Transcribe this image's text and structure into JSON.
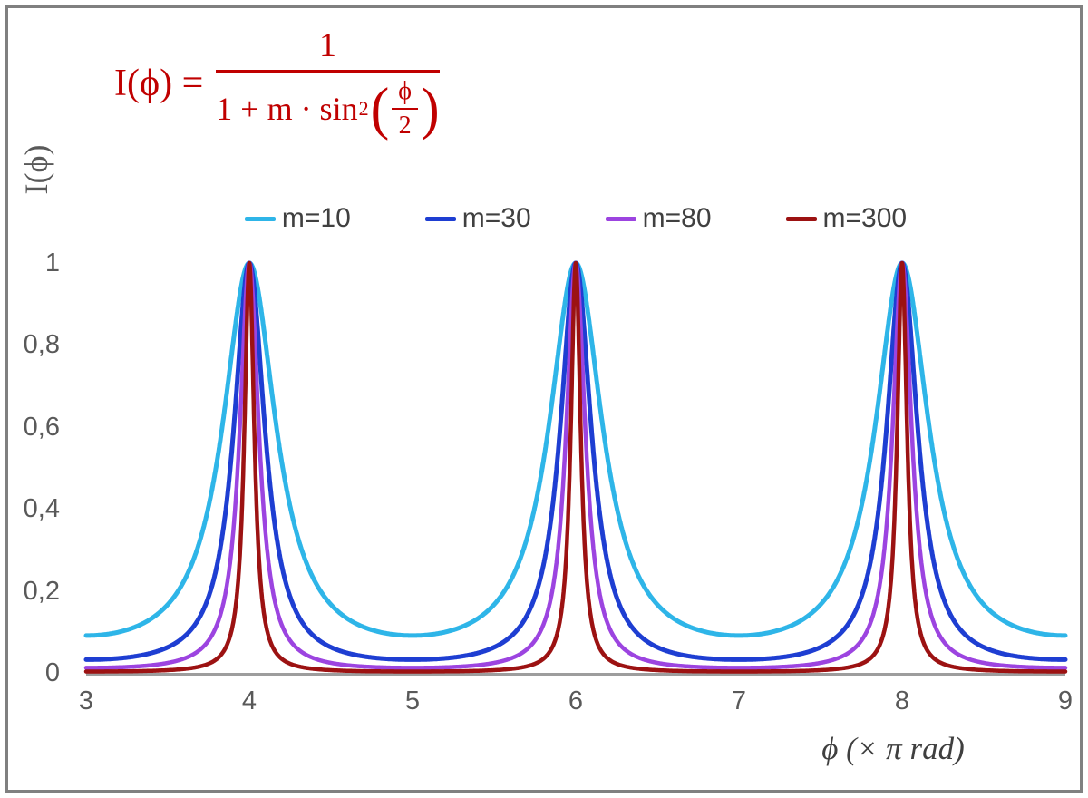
{
  "formula": {
    "lhs": "I(ϕ) =",
    "numerator": "1",
    "denominator_prefix": "1 + m · sin",
    "denominator_exponent": "2",
    "open_paren": "(",
    "close_paren": ")",
    "inner_numerator": "ϕ",
    "inner_denominator": "2",
    "color": "#c00000"
  },
  "chart_data": {
    "type": "line",
    "function": "I(phi) = 1 / (1 + m * sin^2(phi/2)), with phi expressed in units of pi rad",
    "x": {
      "label": "ϕ  (× π rad)",
      "min": 3,
      "max": 9,
      "ticks": [
        3,
        4,
        5,
        6,
        7,
        8,
        9
      ],
      "tick_labels": [
        "3",
        "4",
        "5",
        "6",
        "7",
        "8",
        "9"
      ]
    },
    "y": {
      "label": "I(ϕ)",
      "min": 0,
      "max": 1,
      "plot_top_value": 1.6,
      "ticks": [
        0,
        0.2,
        0.4,
        0.6,
        0.8,
        1
      ],
      "tick_labels": [
        "0",
        "0,2",
        "0,4",
        "0,6",
        "0,8",
        "1"
      ]
    },
    "series": [
      {
        "name": "m=10",
        "m": 10,
        "color": "#2eb5e8"
      },
      {
        "name": "m=30",
        "m": 30,
        "color": "#1e3ed2"
      },
      {
        "name": "m=80",
        "m": 80,
        "color": "#9c44e0"
      },
      {
        "name": "m=300",
        "m": 300,
        "color": "#9c1212"
      }
    ],
    "peaks_at_x": [
      4,
      6,
      8
    ],
    "peak_value": 1,
    "legend_position": "top-center",
    "grid": false,
    "colors": {
      "axis_line": "#9d9d9d",
      "tick_text": "#595959",
      "legend_text": "#404040",
      "frame_border": "#808080"
    }
  }
}
